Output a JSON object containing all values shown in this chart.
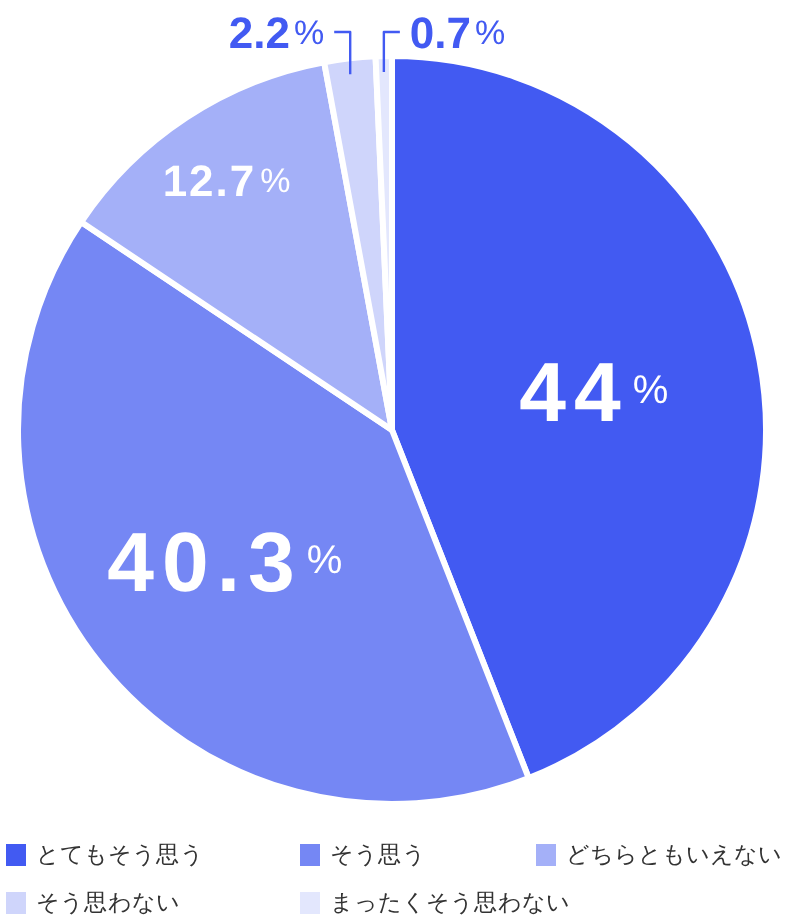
{
  "chart_data": {
    "type": "pie",
    "categories": [
      "とてもそう思う",
      "そう思う",
      "どちらともいえない",
      "そう思わない",
      "まったくそう思わない"
    ],
    "values": [
      44,
      40.3,
      12.7,
      2.2,
      0.7
    ],
    "colors": [
      "#425af2",
      "#7587f4",
      "#a4b0f8",
      "#cfd5fb",
      "#e3e7fd"
    ],
    "value_labels": [
      "44%",
      "40.3%",
      "12.7%",
      "2.2%",
      "0.7%"
    ],
    "legend": "bottom"
  }
}
